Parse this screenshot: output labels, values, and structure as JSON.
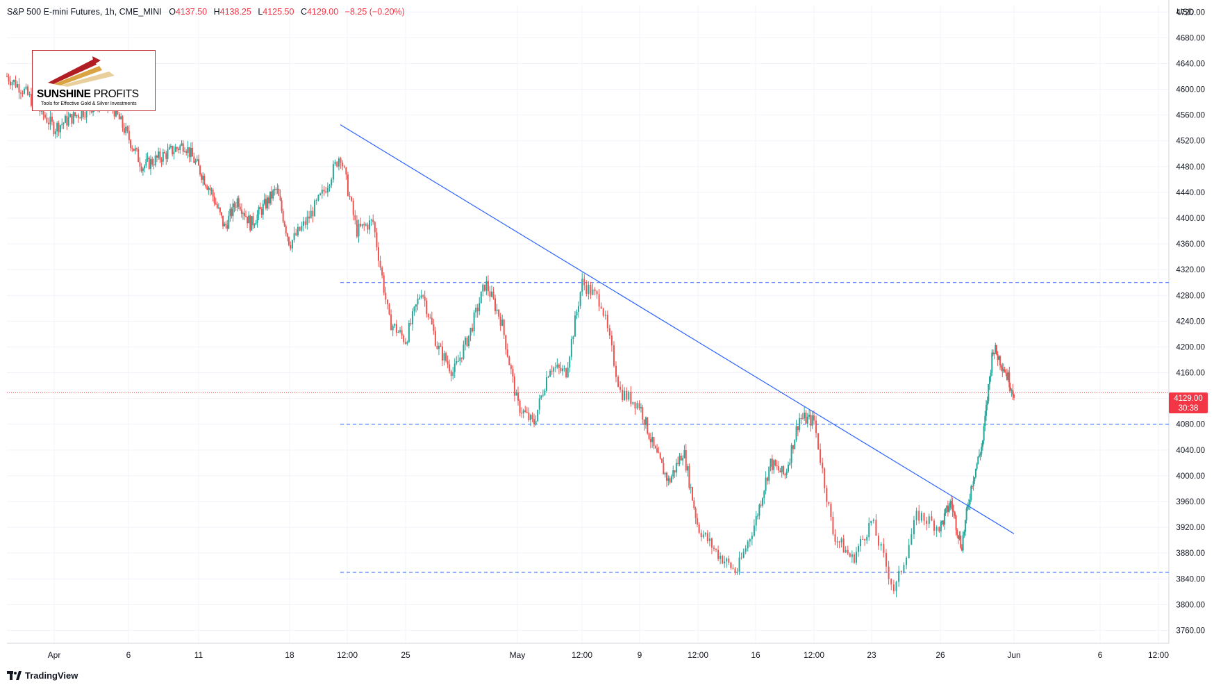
{
  "header": {
    "symbol": "S&P 500 E-mini Futures, 1h, CME_MINI",
    "open_label": "O",
    "open": "4137.50",
    "high_label": "H",
    "high": "4138.25",
    "low_label": "L",
    "low": "4125.50",
    "close_label": "C",
    "close": "4129.00",
    "change": "−8.25 (−0.20%)"
  },
  "currency": "USD",
  "last_price": {
    "value": "4129.00",
    "countdown": "30:38"
  },
  "logo": {
    "name_bold": "SUNSHINE",
    "name_rest": " PROFITS",
    "tagline": "Tools for Effective Gold & Silver Investments"
  },
  "footer": {
    "brand": "TradingView",
    "icon": "tradingview-logo-icon"
  },
  "colors": {
    "up": "#26a69a",
    "down": "#ef5350",
    "trendline": "#2962ff",
    "level_line": "#2962ff",
    "last_price_line": "#f23645",
    "grid": "#f0f3fa"
  },
  "chart_data": {
    "type": "candlestick",
    "title": "S&P 500 E-mini Futures, 1h, CME_MINI",
    "xlabel": "",
    "ylabel": "USD",
    "ylim": [
      3740,
      4730
    ],
    "yticks": [
      "4720.00",
      "4680.00",
      "4640.00",
      "4600.00",
      "4560.00",
      "4520.00",
      "4480.00",
      "4440.00",
      "4400.00",
      "4360.00",
      "4320.00",
      "4280.00",
      "4240.00",
      "4200.00",
      "4160.00",
      "4120.00",
      "4080.00",
      "4040.00",
      "4000.00",
      "3960.00",
      "3920.00",
      "3880.00",
      "3840.00",
      "3800.00",
      "3760.00"
    ],
    "xticks": [
      "Apr",
      "6",
      "11",
      "18",
      "12:00",
      "25",
      "May",
      "12:00",
      "9",
      "12:00",
      "16",
      "12:00",
      "23",
      "26",
      "Jun",
      "6",
      "12:00"
    ],
    "price_path": [
      {
        "date": "Mar 29",
        "price": 4620
      },
      {
        "date": "Mar 30",
        "price": 4600
      },
      {
        "date": "Apr 1",
        "price": 4540
      },
      {
        "date": "Apr 4",
        "price": 4580
      },
      {
        "date": "Apr 5",
        "price": 4570
      },
      {
        "date": "Apr 7",
        "price": 4480
      },
      {
        "date": "Apr 10",
        "price": 4515
      },
      {
        "date": "Apr 12",
        "price": 4440
      },
      {
        "date": "Apr 13",
        "price": 4385
      },
      {
        "date": "Apr 14",
        "price": 4430
      },
      {
        "date": "Apr 15",
        "price": 4390
      },
      {
        "date": "Apr 17",
        "price": 4445
      },
      {
        "date": "Apr 18",
        "price": 4360
      },
      {
        "date": "Apr 19",
        "price": 4395
      },
      {
        "date": "Apr 20",
        "price": 4440
      },
      {
        "date": "Apr 21",
        "price": 4500
      },
      {
        "date": "Apr 22",
        "price": 4380
      },
      {
        "date": "Apr 23",
        "price": 4395
      },
      {
        "date": "Apr 24",
        "price": 4240
      },
      {
        "date": "Apr 25",
        "price": 4210
      },
      {
        "date": "Apr 26",
        "price": 4290
      },
      {
        "date": "Apr 27",
        "price": 4200
      },
      {
        "date": "Apr 28",
        "price": 4160
      },
      {
        "date": "Apr 29",
        "price": 4220
      },
      {
        "date": "Apr 30",
        "price": 4300
      },
      {
        "date": "May 1",
        "price": 4240
      },
      {
        "date": "May 2",
        "price": 4110
      },
      {
        "date": "May 3",
        "price": 4080
      },
      {
        "date": "May 4",
        "price": 4170
      },
      {
        "date": "May 5",
        "price": 4160
      },
      {
        "date": "May 6",
        "price": 4300
      },
      {
        "date": "May 7",
        "price": 4270
      },
      {
        "date": "May 8",
        "price": 4130
      },
      {
        "date": "May 9",
        "price": 4110
      },
      {
        "date": "May 10",
        "price": 4040
      },
      {
        "date": "May 11",
        "price": 3990
      },
      {
        "date": "May 12",
        "price": 4040
      },
      {
        "date": "May 13",
        "price": 3920
      },
      {
        "date": "May 14",
        "price": 3880
      },
      {
        "date": "May 15",
        "price": 3850
      },
      {
        "date": "May 16",
        "price": 3930
      },
      {
        "date": "May 17",
        "price": 4020
      },
      {
        "date": "May 18",
        "price": 4000
      },
      {
        "date": "May 19",
        "price": 4090
      },
      {
        "date": "May 20",
        "price": 4085
      },
      {
        "date": "May 21",
        "price": 3910
      },
      {
        "date": "May 22",
        "price": 3870
      },
      {
        "date": "May 23",
        "price": 3930
      },
      {
        "date": "May 24",
        "price": 3820
      },
      {
        "date": "May 25",
        "price": 3940
      },
      {
        "date": "May 26",
        "price": 3920
      },
      {
        "date": "May 27",
        "price": 3960
      },
      {
        "date": "May 28",
        "price": 3890
      },
      {
        "date": "May 29",
        "price": 3990
      },
      {
        "date": "May 30",
        "price": 4050
      },
      {
        "date": "May 31",
        "price": 4200
      },
      {
        "date": "Jun 1",
        "price": 4170
      },
      {
        "date": "Jun 2",
        "price": 4129
      }
    ],
    "lines": {
      "trendline": {
        "from": {
          "date": "Apr 21",
          "price": 4545
        },
        "to": {
          "date": "Jun 2",
          "price": 3910
        }
      },
      "horizontal_levels": [
        4300,
        4080,
        3850
      ],
      "last_price": 4129.0
    },
    "grid": true
  }
}
